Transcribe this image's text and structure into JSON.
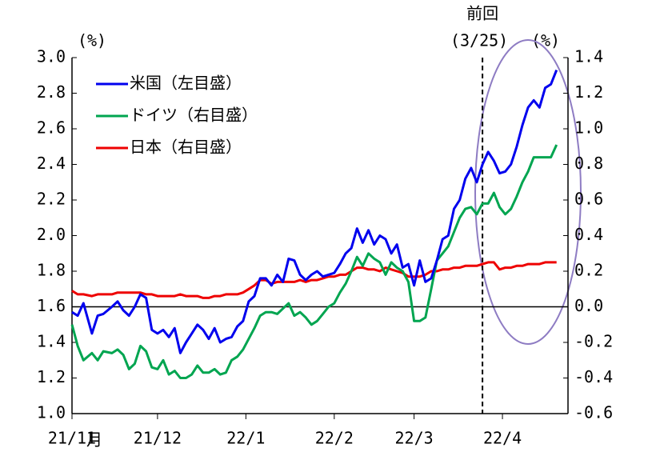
{
  "chart_data": {
    "type": "line",
    "left_unit": "(%)",
    "right_unit": "(%)",
    "x_unit": "月",
    "reference_line": {
      "x": 144,
      "label": "前回",
      "sublabel": "(3/25)"
    },
    "legend": "upper left",
    "xlim": [
      0,
      174
    ],
    "xticks": [
      {
        "value": 0,
        "label": "21/11"
      },
      {
        "value": 30,
        "label": "21/12"
      },
      {
        "value": 61,
        "label": "22/1"
      },
      {
        "value": 92,
        "label": "22/2"
      },
      {
        "value": 120,
        "label": "22/3"
      },
      {
        "value": 151,
        "label": "22/4"
      }
    ],
    "ylim": [
      1.0,
      3.0
    ],
    "yticks": [
      {
        "value": 1.0,
        "label": "1.0"
      },
      {
        "value": 1.2,
        "label": "1.2"
      },
      {
        "value": 1.4,
        "label": "1.4"
      },
      {
        "value": 1.6,
        "label": "1.6"
      },
      {
        "value": 1.8,
        "label": "1.8"
      },
      {
        "value": 2.0,
        "label": "2.0"
      },
      {
        "value": 2.2,
        "label": "2.2"
      },
      {
        "value": 2.4,
        "label": "2.4"
      },
      {
        "value": 2.6,
        "label": "2.6"
      },
      {
        "value": 2.8,
        "label": "2.8"
      },
      {
        "value": 3.0,
        "label": "3.0"
      }
    ],
    "y2lim": [
      -0.6,
      1.4
    ],
    "y2ticks": [
      {
        "value": -0.6,
        "label": "-0.6"
      },
      {
        "value": -0.4,
        "label": "-0.4"
      },
      {
        "value": -0.2,
        "label": "-0.2"
      },
      {
        "value": 0,
        "label": "0.0"
      },
      {
        "value": 0.2,
        "label": "0.2"
      },
      {
        "value": 0.4,
        "label": "0.4"
      },
      {
        "value": 0.6,
        "label": "0.6"
      },
      {
        "value": 0.8,
        "label": "0.8"
      },
      {
        "value": 1.0,
        "label": "1.0"
      },
      {
        "value": 1.2,
        "label": "1.2"
      },
      {
        "value": 1.4,
        "label": "1.4"
      }
    ],
    "x": [
      0,
      2,
      4,
      7,
      9,
      11,
      14,
      16,
      18,
      20,
      22,
      24,
      26,
      28,
      30,
      32,
      34,
      36,
      38,
      40,
      42,
      44,
      46,
      48,
      50,
      52,
      54,
      56,
      58,
      60,
      62,
      64,
      66,
      68,
      70,
      72,
      74,
      76,
      78,
      80,
      82,
      84,
      86,
      88,
      90,
      92,
      94,
      96,
      98,
      100,
      102,
      104,
      106,
      108,
      110,
      112,
      114,
      116,
      118,
      120,
      122,
      124,
      126,
      128,
      130,
      132,
      134,
      136,
      138,
      140,
      142,
      144,
      146,
      148,
      150,
      152,
      154,
      156,
      158,
      160,
      162,
      164,
      166,
      168,
      170
    ],
    "series": [
      {
        "name": "米国（左目盛）",
        "color": "#0000ee",
        "axis": "y",
        "values": [
          1.57,
          1.55,
          1.62,
          1.45,
          1.55,
          1.56,
          1.6,
          1.63,
          1.58,
          1.55,
          1.6,
          1.67,
          1.65,
          1.47,
          1.45,
          1.47,
          1.43,
          1.48,
          1.34,
          1.4,
          1.45,
          1.5,
          1.47,
          1.42,
          1.48,
          1.4,
          1.42,
          1.43,
          1.49,
          1.52,
          1.63,
          1.66,
          1.76,
          1.76,
          1.72,
          1.78,
          1.74,
          1.87,
          1.86,
          1.78,
          1.75,
          1.78,
          1.8,
          1.77,
          1.78,
          1.79,
          1.84,
          1.9,
          1.93,
          2.04,
          1.96,
          2.03,
          1.95,
          2.0,
          1.98,
          1.9,
          1.95,
          1.82,
          1.84,
          1.72,
          1.86,
          1.74,
          1.76,
          1.86,
          1.98,
          2.0,
          2.15,
          2.2,
          2.32,
          2.38,
          2.3,
          2.4,
          2.47,
          2.42,
          2.35,
          2.36,
          2.4,
          2.5,
          2.62,
          2.72,
          2.76,
          2.72,
          2.83,
          2.85,
          2.93
        ]
      },
      {
        "name": "ドイツ（右目盛）",
        "color": "#00a550",
        "axis": "y2",
        "values": [
          -0.1,
          -0.22,
          -0.3,
          -0.26,
          -0.3,
          -0.25,
          -0.26,
          -0.24,
          -0.27,
          -0.35,
          -0.32,
          -0.22,
          -0.25,
          -0.34,
          -0.35,
          -0.3,
          -0.38,
          -0.36,
          -0.4,
          -0.4,
          -0.38,
          -0.33,
          -0.37,
          -0.37,
          -0.35,
          -0.38,
          -0.37,
          -0.3,
          -0.28,
          -0.24,
          -0.18,
          -0.12,
          -0.05,
          -0.03,
          -0.03,
          -0.04,
          -0.01,
          0.02,
          -0.05,
          -0.03,
          -0.06,
          -0.1,
          -0.08,
          -0.04,
          0.0,
          0.02,
          0.08,
          0.13,
          0.2,
          0.28,
          0.23,
          0.3,
          0.27,
          0.25,
          0.18,
          0.25,
          0.22,
          0.2,
          0.14,
          -0.08,
          -0.08,
          -0.06,
          0.1,
          0.26,
          0.3,
          0.34,
          0.42,
          0.5,
          0.55,
          0.56,
          0.52,
          0.58,
          0.58,
          0.64,
          0.56,
          0.52,
          0.55,
          0.62,
          0.7,
          0.76,
          0.84,
          0.84,
          0.84,
          0.84,
          0.91
        ]
      },
      {
        "name": "日本（右目盛）",
        "color": "#ee0000",
        "axis": "y2",
        "values": [
          0.09,
          0.07,
          0.07,
          0.06,
          0.07,
          0.07,
          0.07,
          0.08,
          0.08,
          0.08,
          0.08,
          0.08,
          0.07,
          0.07,
          0.06,
          0.06,
          0.06,
          0.06,
          0.07,
          0.06,
          0.06,
          0.06,
          0.05,
          0.05,
          0.06,
          0.06,
          0.07,
          0.07,
          0.07,
          0.08,
          0.1,
          0.12,
          0.15,
          0.15,
          0.13,
          0.14,
          0.14,
          0.14,
          0.14,
          0.15,
          0.14,
          0.15,
          0.15,
          0.16,
          0.17,
          0.17,
          0.18,
          0.18,
          0.2,
          0.22,
          0.22,
          0.21,
          0.21,
          0.2,
          0.22,
          0.21,
          0.2,
          0.19,
          0.17,
          0.17,
          0.17,
          0.18,
          0.2,
          0.2,
          0.21,
          0.21,
          0.22,
          0.22,
          0.23,
          0.23,
          0.23,
          0.24,
          0.25,
          0.25,
          0.21,
          0.22,
          0.22,
          0.23,
          0.23,
          0.24,
          0.24,
          0.24,
          0.25,
          0.25,
          0.25
        ]
      }
    ]
  }
}
